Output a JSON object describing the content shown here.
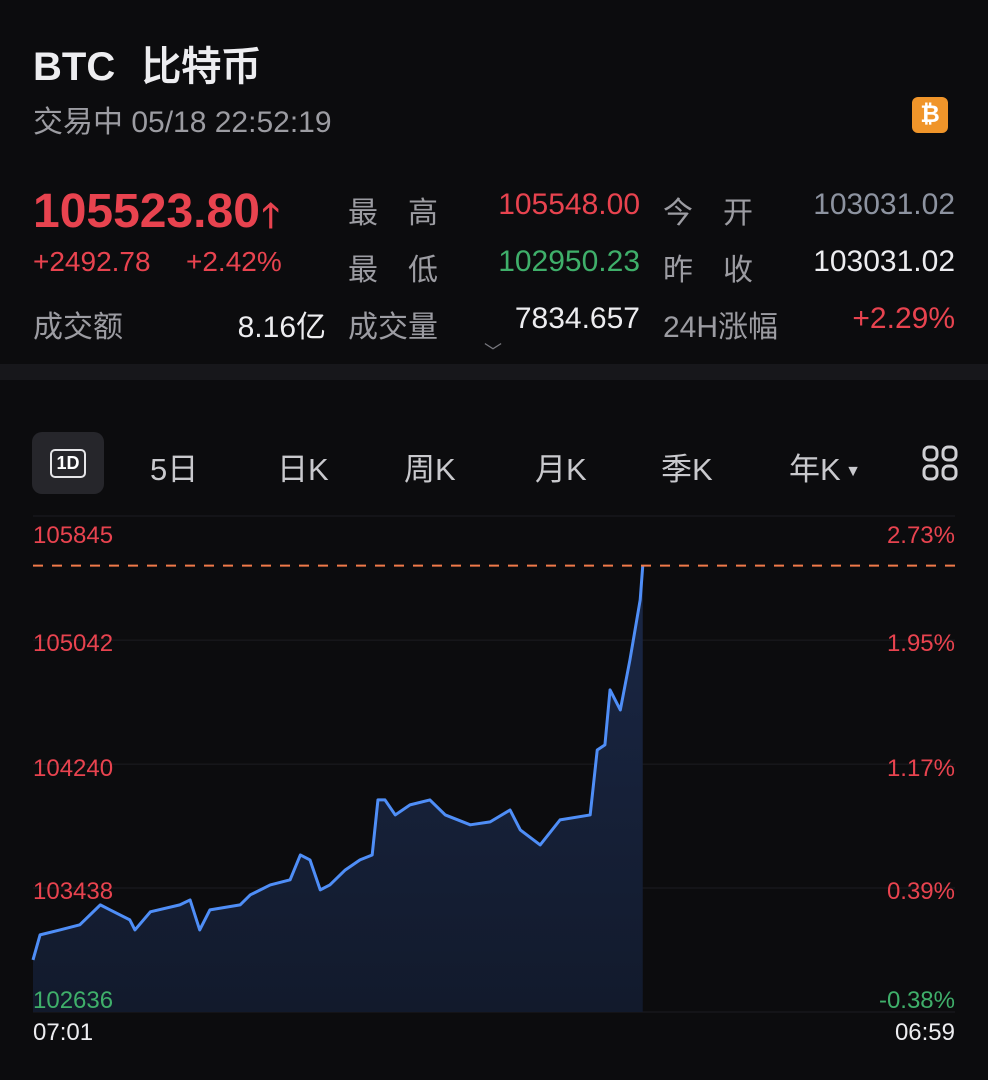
{
  "header": {
    "symbol": "BTC",
    "name": "比特币",
    "status": "交易中 05/18 22:52:19",
    "coin_icon": "bitcoin-icon",
    "coin_glyph": "₿"
  },
  "quote": {
    "price": "105523.80",
    "direction": "up",
    "change": "+2492.78",
    "change_pct": "+2.42%",
    "high_label": "最　高",
    "high": "105548.00",
    "low_label": "最　低",
    "low": "102950.23",
    "open_label": "今　开",
    "open": "103031.02",
    "prev_close_label": "昨　收",
    "prev_close": "103031.02",
    "turnover_label": "成交额",
    "turnover": "8.16亿",
    "volume_label": "成交量",
    "volume": "7834.657",
    "change24_label": "24H涨幅",
    "change24": "+2.29%"
  },
  "tabs": [
    {
      "label": "1D",
      "active": true
    },
    {
      "label": "5日"
    },
    {
      "label": "日K"
    },
    {
      "label": "周K"
    },
    {
      "label": "月K"
    },
    {
      "label": "季K"
    },
    {
      "label": "年K"
    }
  ],
  "colors": {
    "up": "#e8434f",
    "down": "#3faf6a",
    "line": "#4f8ef7",
    "dash": "#f07a4a",
    "bg": "#0c0c0e"
  },
  "chart_data": {
    "type": "area",
    "ylim": [
      102636,
      105845
    ],
    "y_ticks": [
      "105845",
      "105042",
      "104240",
      "103438",
      "102636"
    ],
    "y_ticks_right": [
      "2.73%",
      "1.95%",
      "1.17%",
      "0.39%",
      "-0.38%"
    ],
    "x_ticks": [
      "07:01",
      "06:59"
    ],
    "current_price_line": 105523.8,
    "grid": true,
    "x": [
      "07:01",
      "07:12",
      "07:43",
      "08:14",
      "08:46",
      "09:01",
      "09:32",
      "09:40",
      "10:04",
      "10:50",
      "11:06",
      "11:21",
      "11:37",
      "12:24",
      "12:40",
      "13:11",
      "13:42",
      "13:58",
      "14:13",
      "14:29",
      "14:44",
      "15:08",
      "15:31",
      "15:50",
      "15:59",
      "16:10",
      "16:26",
      "16:49",
      "17:20",
      "17:44",
      "18:23",
      "18:54",
      "19:25",
      "19:41",
      "20:12",
      "20:43",
      "21:30",
      "21:41",
      "21:53",
      "22:01",
      "22:17",
      "22:32",
      "22:48",
      "22:52"
    ],
    "values": [
      102973,
      103135,
      103167,
      103200,
      103329,
      103297,
      103232,
      103167,
      103284,
      103329,
      103361,
      103167,
      103297,
      103329,
      103394,
      103458,
      103491,
      103652,
      103620,
      103426,
      103458,
      103555,
      103620,
      103652,
      104008,
      104008,
      103911,
      103976,
      104008,
      103911,
      103847,
      103866,
      103943,
      103814,
      103717,
      103879,
      103911,
      104331,
      104364,
      104720,
      104590,
      104914,
      105302,
      105523
    ]
  }
}
